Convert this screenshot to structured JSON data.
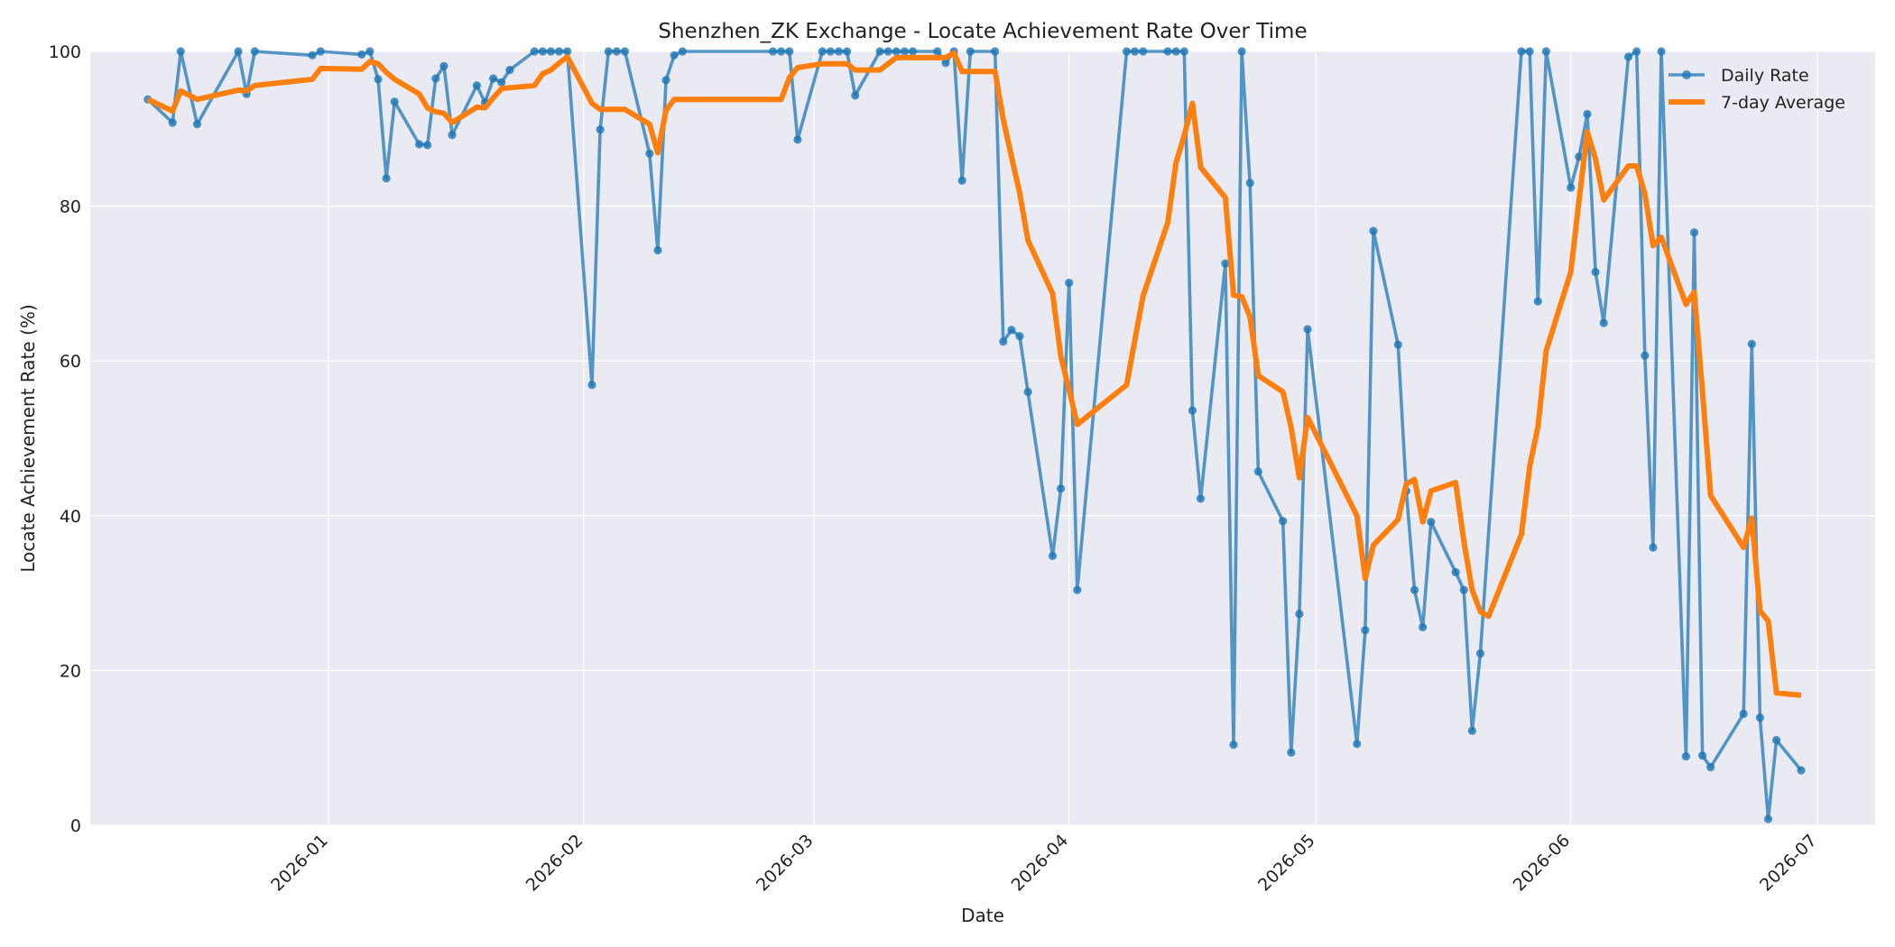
{
  "chart_data": {
    "type": "line",
    "title": "Shenzhen_ZK Exchange - Locate Achievement Rate Over Time",
    "xlabel": "Date",
    "ylabel": "Locate Achievement Rate (%)",
    "xlim": [
      "2025-12-03",
      "2026-07-08"
    ],
    "ylim": [
      0,
      100
    ],
    "y_ticks": [
      0,
      20,
      40,
      60,
      80,
      100
    ],
    "x_ticks": [
      "2026-01",
      "2026-02",
      "2026-03",
      "2026-04",
      "2026-05",
      "2026-06",
      "2026-07"
    ],
    "grid": true,
    "legend_position": "top-right",
    "series": [
      {
        "name": "Daily Rate",
        "color": "#1f77b4",
        "marker": "circle",
        "points": [
          [
            "2025-12-10",
            93.8
          ],
          [
            "2025-12-13",
            90.8
          ],
          [
            "2025-12-14",
            100
          ],
          [
            "2025-12-16",
            90.6
          ],
          [
            "2025-12-21",
            100
          ],
          [
            "2025-12-22",
            94.5
          ],
          [
            "2025-12-23",
            100
          ],
          [
            "2025-12-30",
            99.5
          ],
          [
            "2025-12-31",
            100
          ],
          [
            "2026-01-05",
            99.6
          ],
          [
            "2026-01-06",
            100
          ],
          [
            "2026-01-07",
            96.4
          ],
          [
            "2026-01-08",
            83.6
          ],
          [
            "2026-01-09",
            93.5
          ],
          [
            "2026-01-12",
            88.0
          ],
          [
            "2026-01-13",
            87.9
          ],
          [
            "2026-01-14",
            96.5
          ],
          [
            "2026-01-15",
            98.1
          ],
          [
            "2026-01-16",
            89.2
          ],
          [
            "2026-01-19",
            95.6
          ],
          [
            "2026-01-20",
            93.4
          ],
          [
            "2026-01-21",
            96.5
          ],
          [
            "2026-01-22",
            96.0
          ],
          [
            "2026-01-23",
            97.6
          ],
          [
            "2026-01-26",
            100
          ],
          [
            "2026-01-27",
            100
          ],
          [
            "2026-01-28",
            100
          ],
          [
            "2026-01-29",
            100
          ],
          [
            "2026-01-30",
            100
          ],
          [
            "2026-02-02",
            56.9
          ],
          [
            "2026-02-03",
            89.9
          ],
          [
            "2026-02-04",
            100
          ],
          [
            "2026-02-05",
            100
          ],
          [
            "2026-02-06",
            100
          ],
          [
            "2026-02-09",
            86.8
          ],
          [
            "2026-02-10",
            74.3
          ],
          [
            "2026-02-11",
            96.3
          ],
          [
            "2026-02-12",
            99.5
          ],
          [
            "2026-02-13",
            100
          ],
          [
            "2026-02-24",
            100
          ],
          [
            "2026-02-25",
            100
          ],
          [
            "2026-02-26",
            100
          ],
          [
            "2026-02-27",
            88.6
          ],
          [
            "2026-03-02",
            100
          ],
          [
            "2026-03-03",
            100
          ],
          [
            "2026-03-04",
            100
          ],
          [
            "2026-03-05",
            100
          ],
          [
            "2026-03-06",
            94.3
          ],
          [
            "2026-03-09",
            100
          ],
          [
            "2026-03-10",
            100
          ],
          [
            "2026-03-11",
            100
          ],
          [
            "2026-03-12",
            100
          ],
          [
            "2026-03-13",
            100
          ],
          [
            "2026-03-16",
            100
          ],
          [
            "2026-03-17",
            98.5
          ],
          [
            "2026-03-18",
            100
          ],
          [
            "2026-03-19",
            83.3
          ],
          [
            "2026-03-20",
            100
          ],
          [
            "2026-03-23",
            100
          ],
          [
            "2026-03-24",
            62.5
          ],
          [
            "2026-03-25",
            64.0
          ],
          [
            "2026-03-26",
            63.2
          ],
          [
            "2026-03-27",
            56.0
          ],
          [
            "2026-03-30",
            34.8
          ],
          [
            "2026-03-31",
            43.5
          ],
          [
            "2026-04-01",
            70.1
          ],
          [
            "2026-04-02",
            30.4
          ],
          [
            "2026-04-08",
            100
          ],
          [
            "2026-04-09",
            100
          ],
          [
            "2026-04-10",
            100
          ],
          [
            "2026-04-13",
            100
          ],
          [
            "2026-04-14",
            100
          ],
          [
            "2026-04-15",
            100
          ],
          [
            "2026-04-16",
            53.6
          ],
          [
            "2026-04-17",
            42.2
          ],
          [
            "2026-04-20",
            72.6
          ],
          [
            "2026-04-21",
            10.4
          ],
          [
            "2026-04-22",
            100
          ],
          [
            "2026-04-23",
            83.0
          ],
          [
            "2026-04-24",
            45.7
          ],
          [
            "2026-04-27",
            39.3
          ],
          [
            "2026-04-28",
            9.4
          ],
          [
            "2026-04-29",
            27.3
          ],
          [
            "2026-04-30",
            64.1
          ],
          [
            "2026-05-06",
            10.5
          ],
          [
            "2026-05-07",
            25.2
          ],
          [
            "2026-05-08",
            76.8
          ],
          [
            "2026-05-11",
            62.1
          ],
          [
            "2026-05-12",
            43.2
          ],
          [
            "2026-05-13",
            30.4
          ],
          [
            "2026-05-14",
            25.6
          ],
          [
            "2026-05-15",
            39.2
          ],
          [
            "2026-05-18",
            32.7
          ],
          [
            "2026-05-19",
            30.4
          ],
          [
            "2026-05-20",
            12.2
          ],
          [
            "2026-05-21",
            22.2
          ],
          [
            "2026-05-26",
            100
          ],
          [
            "2026-05-27",
            100
          ],
          [
            "2026-05-28",
            67.7
          ],
          [
            "2026-05-29",
            100
          ],
          [
            "2026-06-01",
            82.4
          ],
          [
            "2026-06-02",
            86.4
          ],
          [
            "2026-06-03",
            91.9
          ],
          [
            "2026-06-04",
            71.5
          ],
          [
            "2026-06-05",
            64.9
          ],
          [
            "2026-06-08",
            99.3
          ],
          [
            "2026-06-09",
            100
          ],
          [
            "2026-06-10",
            60.7
          ],
          [
            "2026-06-11",
            35.9
          ],
          [
            "2026-06-12",
            100
          ],
          [
            "2026-06-15",
            8.9
          ],
          [
            "2026-06-16",
            76.6
          ],
          [
            "2026-06-17",
            9.0
          ],
          [
            "2026-06-18",
            7.5
          ],
          [
            "2026-06-22",
            14.4
          ],
          [
            "2026-06-23",
            62.2
          ],
          [
            "2026-06-24",
            13.9
          ],
          [
            "2026-06-25",
            0.8
          ],
          [
            "2026-06-26",
            11.0
          ],
          [
            "2026-06-29",
            7.1
          ]
        ]
      },
      {
        "name": "7-day Average",
        "color": "#ff7f0e",
        "points": [
          [
            "2025-12-10",
            93.8
          ],
          [
            "2025-12-13",
            92.3
          ],
          [
            "2025-12-14",
            94.9
          ],
          [
            "2025-12-16",
            93.8
          ],
          [
            "2025-12-21",
            95.0
          ],
          [
            "2025-12-22",
            94.9
          ],
          [
            "2025-12-23",
            95.6
          ],
          [
            "2025-12-30",
            96.4
          ],
          [
            "2025-12-31",
            97.8
          ],
          [
            "2026-01-05",
            97.7
          ],
          [
            "2026-01-06",
            98.7
          ],
          [
            "2026-01-07",
            98.4
          ],
          [
            "2026-01-08",
            97.3
          ],
          [
            "2026-01-09",
            96.4
          ],
          [
            "2026-01-12",
            94.5
          ],
          [
            "2026-01-13",
            92.7
          ],
          [
            "2026-01-14",
            92.2
          ],
          [
            "2026-01-15",
            92.0
          ],
          [
            "2026-01-16",
            90.8
          ],
          [
            "2026-01-19",
            92.8
          ],
          [
            "2026-01-20",
            92.7
          ],
          [
            "2026-01-21",
            94.0
          ],
          [
            "2026-01-22",
            95.2
          ],
          [
            "2026-01-23",
            95.3
          ],
          [
            "2026-01-26",
            95.6
          ],
          [
            "2026-01-27",
            97.1
          ],
          [
            "2026-01-28",
            97.6
          ],
          [
            "2026-01-29",
            98.5
          ],
          [
            "2026-01-30",
            99.3
          ],
          [
            "2026-02-02",
            93.3
          ],
          [
            "2026-02-03",
            92.5
          ],
          [
            "2026-02-04",
            92.5
          ],
          [
            "2026-02-05",
            92.5
          ],
          [
            "2026-02-06",
            92.5
          ],
          [
            "2026-02-09",
            90.6
          ],
          [
            "2026-02-10",
            86.9
          ],
          [
            "2026-02-11",
            92.4
          ],
          [
            "2026-02-12",
            93.8
          ],
          [
            "2026-02-13",
            93.8
          ],
          [
            "2026-02-24",
            93.8
          ],
          [
            "2026-02-25",
            93.8
          ],
          [
            "2026-02-26",
            96.6
          ],
          [
            "2026-02-27",
            97.9
          ],
          [
            "2026-03-02",
            98.4
          ],
          [
            "2026-03-03",
            98.4
          ],
          [
            "2026-03-04",
            98.4
          ],
          [
            "2026-03-05",
            98.4
          ],
          [
            "2026-03-06",
            97.6
          ],
          [
            "2026-03-09",
            97.6
          ],
          [
            "2026-03-10",
            98.4
          ],
          [
            "2026-03-11",
            99.2
          ],
          [
            "2026-03-12",
            99.2
          ],
          [
            "2026-03-13",
            99.2
          ],
          [
            "2026-03-16",
            99.2
          ],
          [
            "2026-03-17",
            99.2
          ],
          [
            "2026-03-18",
            99.8
          ],
          [
            "2026-03-19",
            97.4
          ],
          [
            "2026-03-20",
            97.4
          ],
          [
            "2026-03-23",
            97.4
          ],
          [
            "2026-03-24",
            91.2
          ],
          [
            "2026-03-25",
            86.4
          ],
          [
            "2026-03-26",
            81.7
          ],
          [
            "2026-03-27",
            75.6
          ],
          [
            "2026-03-30",
            68.7
          ],
          [
            "2026-03-31",
            60.6
          ],
          [
            "2026-04-01",
            56.3
          ],
          [
            "2026-04-02",
            51.8
          ],
          [
            "2026-04-08",
            56.9
          ],
          [
            "2026-04-09",
            62.7
          ],
          [
            "2026-04-10",
            68.4
          ],
          [
            "2026-04-13",
            77.9
          ],
          [
            "2026-04-14",
            85.6
          ],
          [
            "2026-04-15",
            89.1
          ],
          [
            "2026-04-16",
            93.3
          ],
          [
            "2026-04-17",
            85.0
          ],
          [
            "2026-04-20",
            81.1
          ],
          [
            "2026-04-21",
            68.5
          ],
          [
            "2026-04-22",
            68.3
          ],
          [
            "2026-04-23",
            65.7
          ],
          [
            "2026-04-24",
            58.1
          ],
          [
            "2026-04-27",
            56.0
          ],
          [
            "2026-04-28",
            51.4
          ],
          [
            "2026-04-29",
            44.9
          ],
          [
            "2026-04-30",
            52.7
          ],
          [
            "2026-05-06",
            40.0
          ],
          [
            "2026-05-07",
            31.9
          ],
          [
            "2026-05-08",
            36.2
          ],
          [
            "2026-05-11",
            39.5
          ],
          [
            "2026-05-12",
            44.1
          ],
          [
            "2026-05-13",
            44.7
          ],
          [
            "2026-05-14",
            39.2
          ],
          [
            "2026-05-15",
            43.2
          ],
          [
            "2026-05-18",
            44.3
          ],
          [
            "2026-05-19",
            36.7
          ],
          [
            "2026-05-20",
            30.4
          ],
          [
            "2026-05-21",
            27.6
          ],
          [
            "2026-05-22",
            27.0
          ],
          [
            "2026-05-26",
            37.6
          ],
          [
            "2026-05-27",
            46.4
          ],
          [
            "2026-05-28",
            51.5
          ],
          [
            "2026-05-29",
            61.3
          ],
          [
            "2026-06-01",
            71.5
          ],
          [
            "2026-06-02",
            80.8
          ],
          [
            "2026-06-03",
            89.6
          ],
          [
            "2026-06-04",
            86.1
          ],
          [
            "2026-06-05",
            80.8
          ],
          [
            "2026-06-08",
            85.2
          ],
          [
            "2026-06-09",
            85.2
          ],
          [
            "2026-06-10",
            81.6
          ],
          [
            "2026-06-11",
            74.9
          ],
          [
            "2026-06-12",
            76.0
          ],
          [
            "2026-06-15",
            67.3
          ],
          [
            "2026-06-16",
            68.9
          ],
          [
            "2026-06-17",
            56.1
          ],
          [
            "2026-06-18",
            42.6
          ],
          [
            "2026-06-22",
            35.9
          ],
          [
            "2026-06-23",
            39.7
          ],
          [
            "2026-06-24",
            27.7
          ],
          [
            "2026-06-25",
            26.4
          ],
          [
            "2026-06-26",
            17.1
          ],
          [
            "2026-06-29",
            16.8
          ]
        ]
      }
    ]
  }
}
